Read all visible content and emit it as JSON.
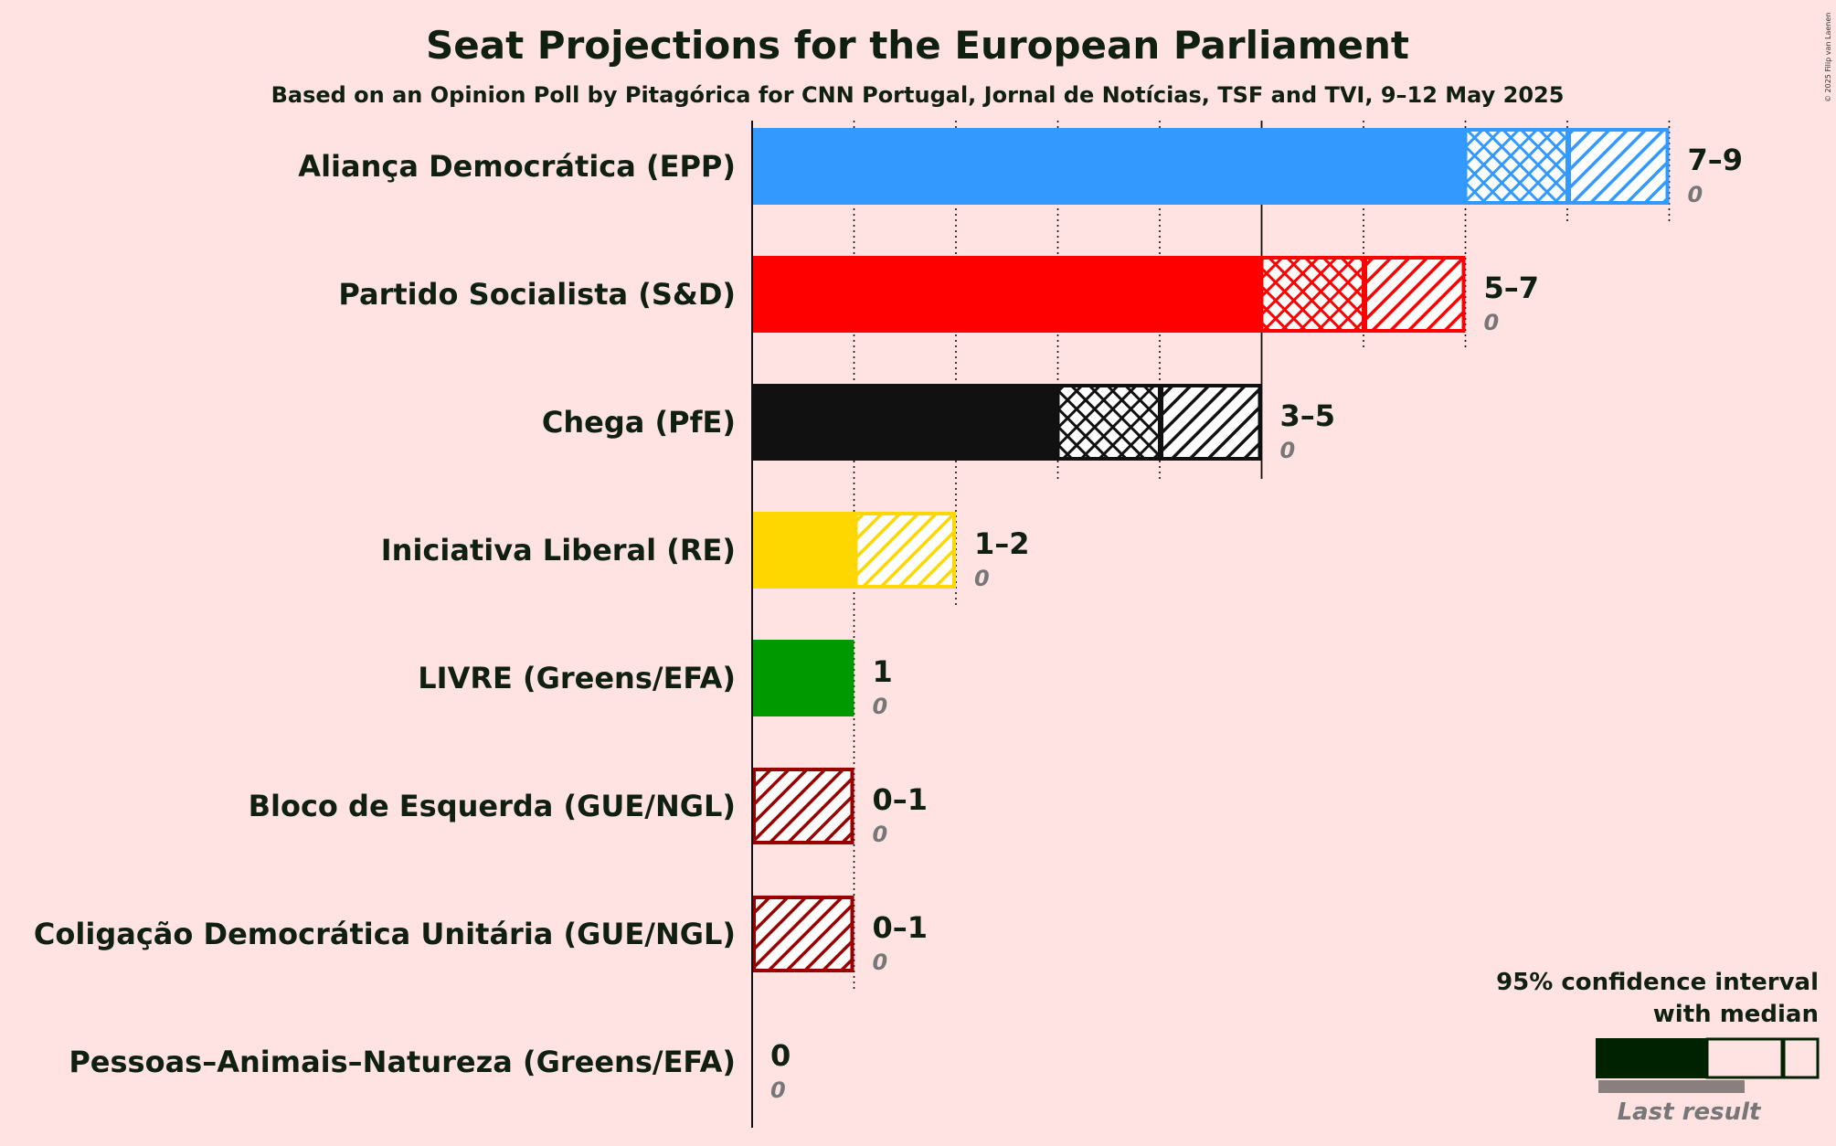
{
  "chart_data": {
    "type": "bar",
    "orientation": "horizontal",
    "title": "Seat Projections for the European Parliament",
    "subtitle": "Based on an Opinion Poll by Pitagórica for CNN Portugal, Jornal de Notícias, TSF and TVI, 9–12 May 2025",
    "xlim": [
      0,
      9
    ],
    "grid": "dotted vertical lines at each seat",
    "parties": [
      {
        "name": "Aliança Democrática (EPP)",
        "low": 7,
        "median": 8,
        "high": 9,
        "range_label": "7–9",
        "last_result": "0",
        "color": "#3399ff"
      },
      {
        "name": "Partido Socialista (S&D)",
        "low": 5,
        "median": 6,
        "high": 7,
        "range_label": "5–7",
        "last_result": "0",
        "color": "#ff0000"
      },
      {
        "name": "Chega (PfE)",
        "low": 3,
        "median": 4,
        "high": 5,
        "range_label": "3–5",
        "last_result": "0",
        "color": "#111111"
      },
      {
        "name": "Iniciativa Liberal (RE)",
        "low": 1,
        "median": 1,
        "high": 2,
        "range_label": "1–2",
        "last_result": "0",
        "color": "#ffd700"
      },
      {
        "name": "LIVRE (Greens/EFA)",
        "low": 1,
        "median": 1,
        "high": 1,
        "range_label": "1",
        "last_result": "0",
        "color": "#009900"
      },
      {
        "name": "Bloco de Esquerda (GUE/NGL)",
        "low": 0,
        "median": 0,
        "high": 1,
        "range_label": "0–1",
        "last_result": "0",
        "color": "#990000"
      },
      {
        "name": "Coligação Democrática Unitária (GUE/NGL)",
        "low": 0,
        "median": 0,
        "high": 1,
        "range_label": "0–1",
        "last_result": "0",
        "color": "#990000"
      },
      {
        "name": "Pessoas–Animais–Natureza (Greens/EFA)",
        "low": 0,
        "median": 0,
        "high": 0,
        "range_label": "0",
        "last_result": "0",
        "color": "#009900"
      }
    ],
    "legend": {
      "line1": "95% confidence interval",
      "line2": "with median",
      "last_result": "Last result",
      "placement": "bottom-right",
      "color": "#002200"
    }
  },
  "copyright": "© 2025 Filip van Laenen"
}
